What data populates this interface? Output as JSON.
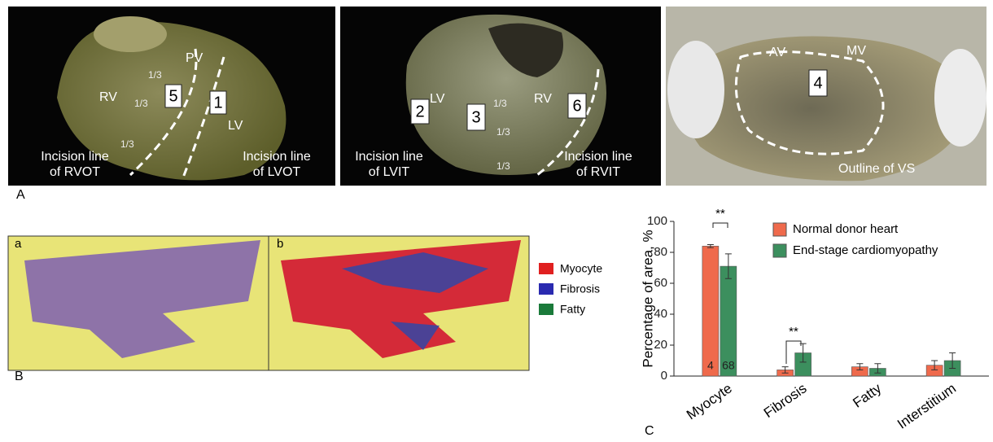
{
  "panel_a": {
    "label": "A",
    "photos": [
      {
        "labels": [
          "PV",
          "1/3",
          "RV",
          "1/3",
          "5",
          "1",
          "LV",
          "1/3"
        ],
        "captions": [
          [
            "Incision line",
            "of RVOT"
          ],
          [
            "Incision line",
            "of LVOT"
          ]
        ]
      },
      {
        "labels": [
          "LV",
          "2",
          "3",
          "1/3",
          "1/3",
          "RV",
          "6",
          "1/3"
        ],
        "captions": [
          [
            "Incision line",
            "of LVIT"
          ],
          [
            "Incision line",
            "of RVIT"
          ]
        ]
      },
      {
        "labels": [
          "AV",
          "MV",
          "4"
        ],
        "captions": [
          "Outline of VS"
        ]
      }
    ]
  },
  "panel_b": {
    "label": "B",
    "images": [
      "a",
      "b"
    ],
    "legend": [
      "Myocyte",
      "Fibrosis",
      "Fatty"
    ]
  },
  "chart_data": {
    "type": "bar",
    "panel_label": "C",
    "y_label": "Percentage of area, %",
    "categories": [
      "Myocyte",
      "Fibrosis",
      "Fatty",
      "Interstitium"
    ],
    "series": [
      {
        "name": "Normal donor heart",
        "color": "#ef6a4c",
        "values": [
          84,
          4,
          6,
          7
        ],
        "errors": [
          1,
          2,
          2,
          3
        ],
        "n": 4
      },
      {
        "name": "End-stage cardiomyopathy",
        "color": "#3c8f5e",
        "values": [
          71,
          15,
          5,
          10
        ],
        "errors": [
          8,
          6,
          3,
          5
        ],
        "n": 68
      }
    ],
    "annotations": [
      "**",
      "**"
    ],
    "ylim": [
      0,
      100
    ],
    "yticks": [
      0,
      20,
      40,
      60,
      80,
      100
    ]
  }
}
